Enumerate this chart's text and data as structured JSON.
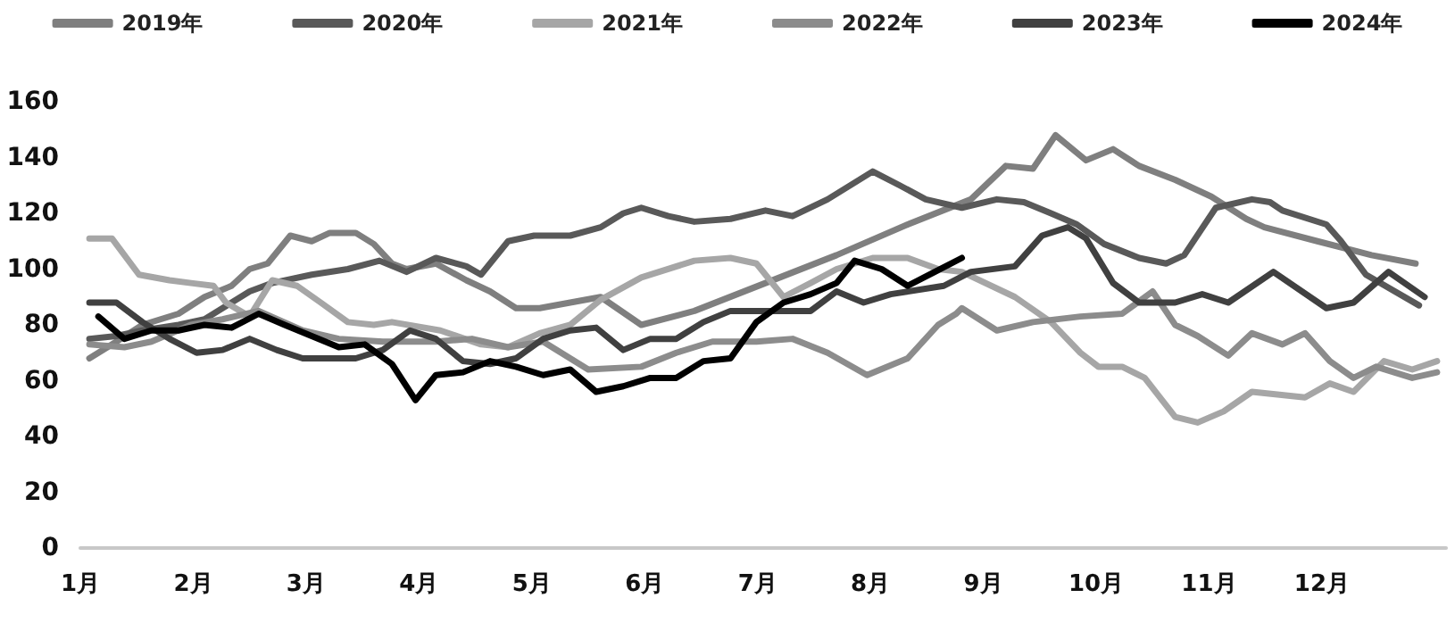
{
  "chart_data": {
    "type": "line",
    "xlim": [
      1,
      13.1
    ],
    "xticks": [
      {
        "value": 1,
        "label": "1月"
      },
      {
        "value": 2,
        "label": "2月"
      },
      {
        "value": 3,
        "label": "3月"
      },
      {
        "value": 4,
        "label": "4月"
      },
      {
        "value": 5,
        "label": "5月"
      },
      {
        "value": 6,
        "label": "6月"
      },
      {
        "value": 7,
        "label": "7月"
      },
      {
        "value": 8,
        "label": "8月"
      },
      {
        "value": 9,
        "label": "9月"
      },
      {
        "value": 10,
        "label": "10月"
      },
      {
        "value": 11,
        "label": "11月"
      },
      {
        "value": 12,
        "label": "12月"
      }
    ],
    "ylim": [
      0,
      160
    ],
    "yticks": [
      0,
      20,
      40,
      60,
      80,
      100,
      120,
      140,
      160
    ],
    "grid": false,
    "legend": "top",
    "marker": "none",
    "line_style": "solid",
    "series": [
      {
        "name": "2019年",
        "color": "#7f7f7f",
        "x": [
          1.08,
          1.32,
          1.55,
          1.87,
          2.1,
          2.34,
          2.5,
          2.66,
          2.86,
          3.05,
          3.21,
          3.44,
          3.6,
          3.76,
          3.89,
          4.15,
          4.42,
          4.63,
          4.86,
          5.07,
          5.34,
          5.61,
          5.97,
          6.44,
          7.07,
          7.7,
          8.33,
          8.89,
          9.2,
          9.44,
          9.64,
          9.91,
          10.15,
          10.38,
          10.7,
          11.02,
          11.33,
          11.49,
          11.96,
          12.44,
          12.83
        ],
        "values": [
          68,
          74,
          80,
          84,
          90,
          94,
          100,
          102,
          112,
          110,
          113,
          113,
          109,
          102,
          100,
          102,
          96,
          92,
          86,
          86,
          88,
          90,
          80,
          85,
          95,
          105,
          116,
          125,
          137,
          136,
          148,
          139,
          143,
          137,
          132,
          126,
          118,
          115,
          110,
          105,
          102
        ]
      },
      {
        "name": "2020年",
        "color": "#595959",
        "x": [
          1.08,
          1.32,
          1.55,
          1.87,
          2.1,
          2.34,
          2.5,
          2.7,
          3.05,
          3.37,
          3.65,
          3.89,
          4.15,
          4.42,
          4.55,
          4.79,
          5.02,
          5.34,
          5.61,
          5.81,
          5.97,
          6.21,
          6.44,
          6.76,
          7.07,
          7.31,
          7.62,
          8.02,
          8.26,
          8.49,
          8.81,
          9.12,
          9.36,
          9.6,
          9.83,
          10.07,
          10.38,
          10.62,
          10.78,
          11.06,
          11.38,
          11.54,
          11.65,
          12.04,
          12.17,
          12.39,
          12.86
        ],
        "values": [
          75,
          76,
          78,
          80,
          82,
          88,
          92,
          95,
          98,
          100,
          103,
          99,
          104,
          101,
          98,
          110,
          112,
          112,
          115,
          120,
          122,
          119,
          117,
          118,
          121,
          119,
          125,
          135,
          130,
          125,
          122,
          125,
          124,
          120,
          116,
          109,
          104,
          102,
          105,
          122,
          125,
          124,
          121,
          116,
          110,
          98,
          87
        ]
      },
      {
        "name": "2021年",
        "color": "#a6a6a6",
        "x": [
          1.08,
          1.28,
          1.52,
          1.79,
          1.98,
          2.18,
          2.29,
          2.5,
          2.7,
          2.92,
          3.13,
          3.37,
          3.6,
          3.76,
          4.19,
          4.55,
          4.79,
          5.07,
          5.34,
          5.61,
          5.97,
          6.44,
          6.76,
          6.99,
          7.23,
          7.47,
          7.7,
          8.02,
          8.33,
          8.6,
          8.81,
          9.28,
          9.6,
          9.86,
          10.02,
          10.23,
          10.43,
          10.7,
          10.9,
          11.13,
          11.38,
          11.85,
          12.07,
          12.28,
          12.55,
          12.8,
          13.02
        ],
        "values": [
          111,
          111,
          98,
          96,
          95,
          94,
          88,
          83,
          96,
          94,
          88,
          81,
          80,
          81,
          78,
          73,
          72,
          77,
          80,
          89,
          97,
          103,
          104,
          102,
          90,
          95,
          100,
          104,
          104,
          100,
          99,
          90,
          81,
          70,
          65,
          65,
          61,
          47,
          45,
          49,
          56,
          54,
          59,
          56,
          67,
          64,
          67
        ]
      },
      {
        "name": "2022年",
        "color": "#8c8c8c",
        "x": [
          1.08,
          1.39,
          1.63,
          1.98,
          2.26,
          2.58,
          2.97,
          3.29,
          3.68,
          4.15,
          4.47,
          4.79,
          5.1,
          5.5,
          5.97,
          6.28,
          6.6,
          6.99,
          7.31,
          7.62,
          7.97,
          8.33,
          8.6,
          8.76,
          8.81,
          9.12,
          9.44,
          9.86,
          10.23,
          10.5,
          10.7,
          10.9,
          11.17,
          11.38,
          11.65,
          11.85,
          12.07,
          12.28,
          12.48,
          12.8,
          13.02
        ],
        "values": [
          73,
          72,
          74,
          80,
          82,
          85,
          78,
          75,
          74,
          74,
          75,
          72,
          74,
          64,
          65,
          70,
          74,
          74,
          75,
          70,
          62,
          68,
          80,
          84,
          86,
          78,
          81,
          83,
          84,
          92,
          80,
          76,
          69,
          77,
          73,
          77,
          67,
          61,
          65,
          61,
          63
        ]
      },
      {
        "name": "2023年",
        "color": "#404040",
        "x": [
          1.08,
          1.32,
          1.55,
          1.79,
          2.03,
          2.26,
          2.5,
          2.74,
          2.97,
          3.21,
          3.44,
          3.68,
          3.92,
          4.15,
          4.39,
          4.63,
          4.86,
          5.1,
          5.34,
          5.57,
          5.81,
          6.05,
          6.28,
          6.52,
          6.76,
          7.07,
          7.47,
          7.7,
          7.94,
          8.18,
          8.65,
          8.89,
          9.28,
          9.52,
          9.75,
          9.91,
          10.15,
          10.38,
          10.7,
          10.94,
          11.17,
          11.57,
          12.04,
          12.28,
          12.59,
          12.91
        ],
        "values": [
          88,
          88,
          81,
          75,
          70,
          71,
          75,
          71,
          68,
          68,
          68,
          71,
          78,
          75,
          67,
          66,
          68,
          75,
          78,
          79,
          71,
          75,
          75,
          81,
          85,
          85,
          85,
          92,
          88,
          91,
          94,
          99,
          101,
          112,
          115,
          111,
          95,
          88,
          88,
          91,
          88,
          99,
          86,
          88,
          99,
          90
        ]
      },
      {
        "name": "2024年",
        "color": "#000000",
        "x": [
          1.16,
          1.39,
          1.63,
          1.87,
          2.1,
          2.34,
          2.58,
          2.81,
          3.05,
          3.29,
          3.52,
          3.76,
          3.97,
          4.15,
          4.39,
          4.63,
          4.86,
          5.1,
          5.34,
          5.57,
          5.81,
          6.05,
          6.28,
          6.52,
          6.76,
          6.99,
          7.23,
          7.47,
          7.7,
          7.86,
          8.1,
          8.33,
          8.57,
          8.81
        ],
        "values": [
          83,
          75,
          78,
          78,
          80,
          79,
          84,
          80,
          76,
          72,
          73,
          66,
          53,
          62,
          63,
          67,
          65,
          62,
          64,
          56,
          58,
          61,
          61,
          67,
          68,
          81,
          88,
          91,
          95,
          103,
          100,
          94,
          99,
          104
        ]
      }
    ]
  }
}
